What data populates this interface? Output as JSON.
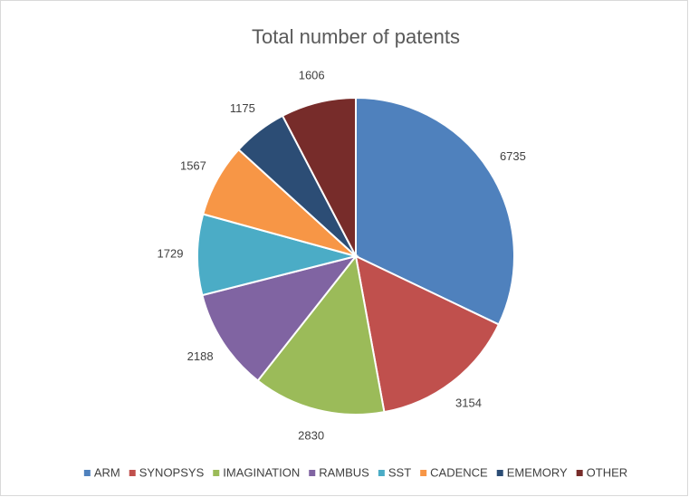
{
  "chart_data": {
    "type": "pie",
    "title": "Total number of patents",
    "categories": [
      "ARM",
      "SYNOPSYS",
      "IMAGINATION",
      "RAMBUS",
      "SST",
      "CADENCE",
      "EMEMORY",
      "OTHER"
    ],
    "values": [
      6735,
      3154,
      2830,
      2188,
      1729,
      1567,
      1175,
      1606
    ],
    "colors": [
      "#4f81bd",
      "#c0504d",
      "#9bbb59",
      "#8064a2",
      "#4bacc6",
      "#f79646",
      "#2c4d75",
      "#772c2a"
    ],
    "legend": "bottom"
  }
}
